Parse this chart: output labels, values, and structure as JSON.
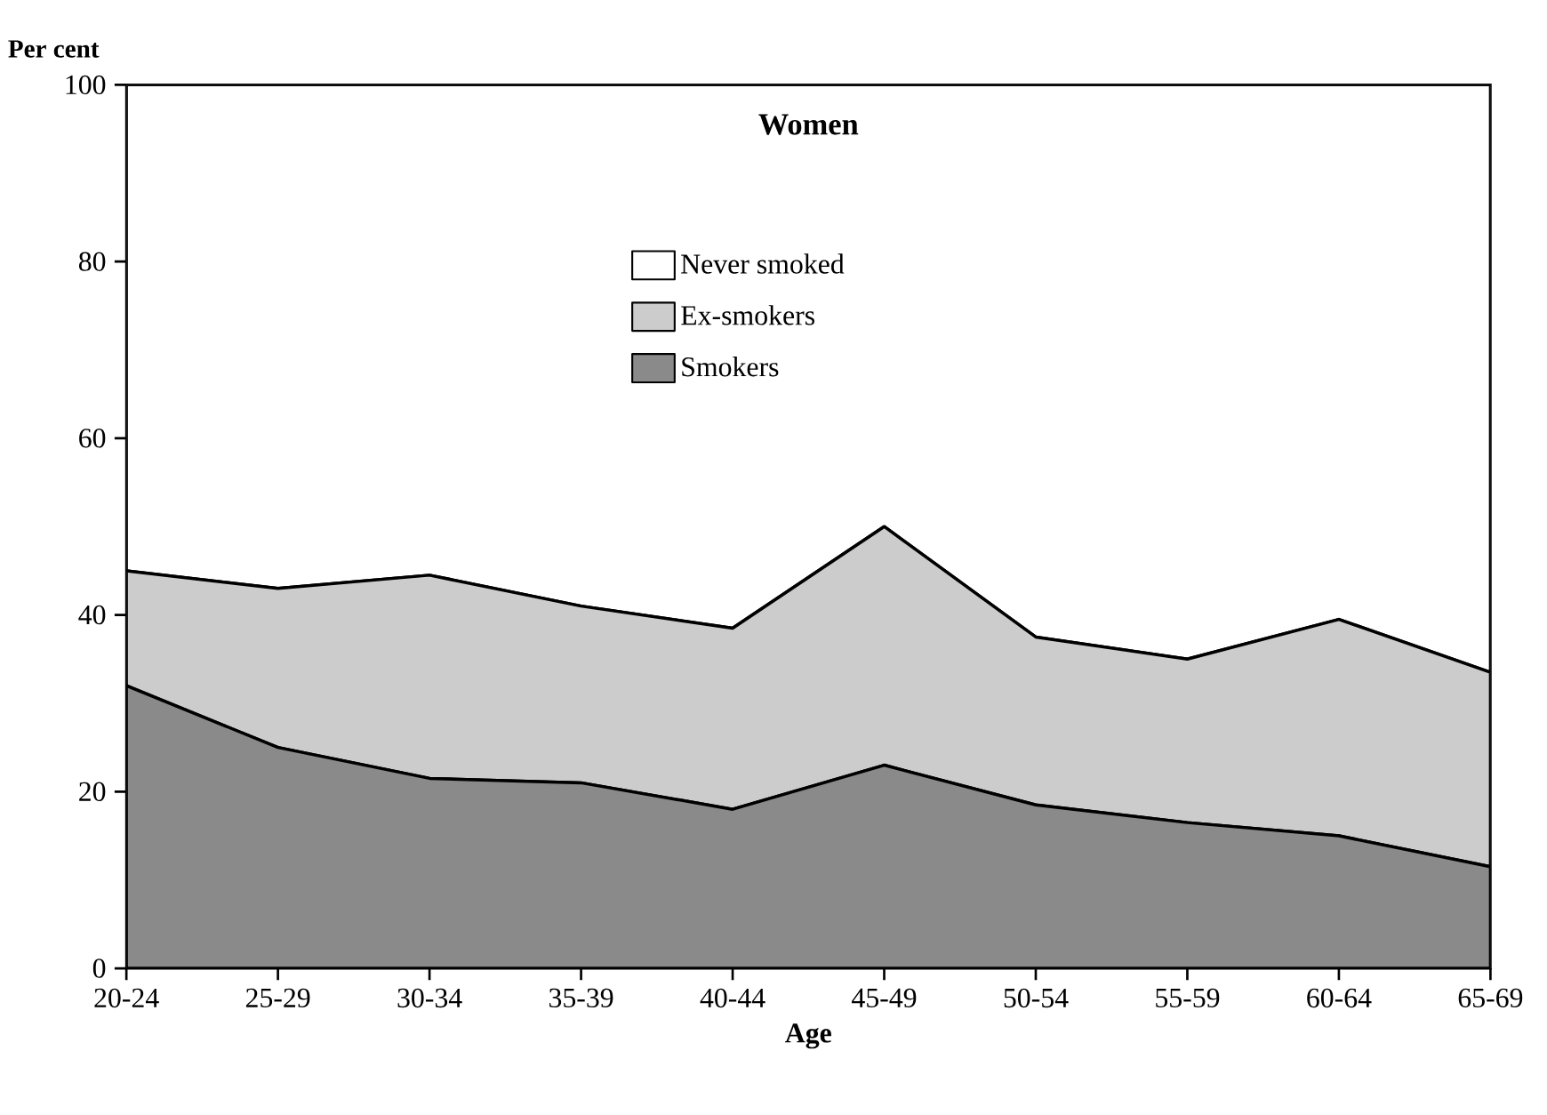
{
  "chart_data": {
    "type": "area",
    "title": "Women",
    "xlabel": "Age",
    "ylabel": "Per cent",
    "categories": [
      "20-24",
      "25-29",
      "30-34",
      "35-39",
      "40-44",
      "45-49",
      "50-54",
      "55-59",
      "60-64",
      "65-69"
    ],
    "stacked": true,
    "series": [
      {
        "name": "Smokers",
        "color": "#8a8a8a",
        "values": [
          32,
          25,
          21.5,
          21,
          18,
          23,
          18.5,
          16.5,
          15,
          11.5
        ]
      },
      {
        "name": "Ex-smokers",
        "color": "#cccccc",
        "values": [
          13,
          18,
          23,
          20,
          20.5,
          27,
          19,
          18.5,
          24.5,
          22
        ]
      },
      {
        "name": "Never smoked",
        "color": "#ffffff",
        "values": [
          55,
          57,
          55.5,
          59,
          61.5,
          50,
          62.5,
          65,
          60.5,
          66.5
        ]
      }
    ],
    "ylim": [
      0,
      100
    ],
    "yticks": [
      0,
      20,
      40,
      60,
      80,
      100
    ],
    "legend": "top"
  }
}
